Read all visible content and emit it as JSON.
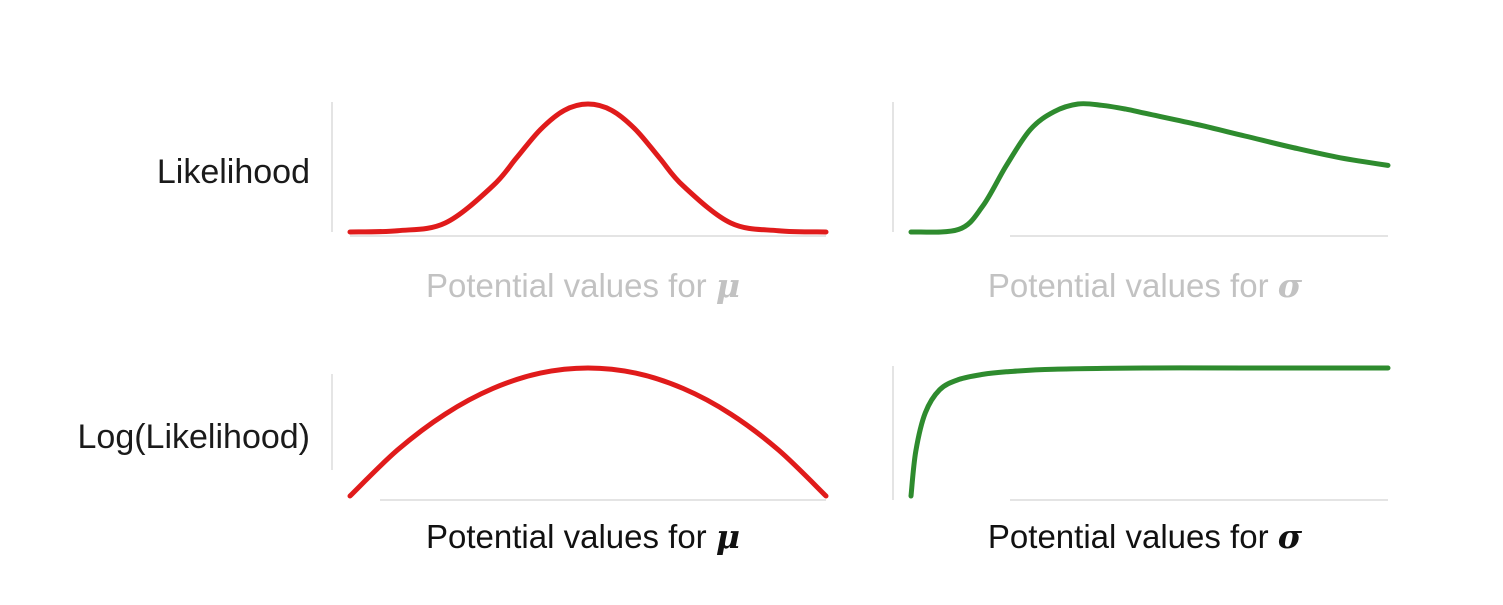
{
  "chart_data": [
    {
      "type": "line",
      "row_label": "Likelihood",
      "xlabel_text": "Potential values for ",
      "xlabel_symbol": "μ",
      "xlabel_faded": true,
      "xlim": [
        0,
        1
      ],
      "ylim": [
        0,
        1
      ],
      "color": "#e01b1b",
      "series": [
        {
          "x": [
            0,
            0.1,
            0.2,
            0.3,
            0.35,
            0.4,
            0.45,
            0.5,
            0.55,
            0.6,
            0.65,
            0.7,
            0.8,
            0.9,
            1.0
          ],
          "y": [
            0.0,
            0.01,
            0.07,
            0.36,
            0.58,
            0.8,
            0.95,
            1.0,
            0.95,
            0.8,
            0.58,
            0.36,
            0.07,
            0.01,
            0.0
          ]
        }
      ]
    },
    {
      "type": "line",
      "row_label": "",
      "xlabel_text": "Potential values for ",
      "xlabel_symbol": "σ",
      "xlabel_faded": true,
      "xlim": [
        0,
        1
      ],
      "ylim": [
        0,
        1
      ],
      "color": "#2e8b2e",
      "series": [
        {
          "x": [
            0,
            0.1,
            0.15,
            0.2,
            0.25,
            0.3,
            0.35,
            0.4,
            0.45,
            0.5,
            0.6,
            0.7,
            0.8,
            0.9,
            1.0
          ],
          "y": [
            0.0,
            0.02,
            0.2,
            0.52,
            0.8,
            0.94,
            1.0,
            0.99,
            0.96,
            0.92,
            0.84,
            0.75,
            0.66,
            0.58,
            0.52
          ]
        }
      ]
    },
    {
      "type": "line",
      "row_label": "Log(Likelihood)",
      "xlabel_text": "Potential values for ",
      "xlabel_symbol": "μ",
      "xlabel_faded": false,
      "xlim": [
        0,
        1
      ],
      "ylim": [
        0,
        1
      ],
      "color": "#e01b1b",
      "series": [
        {
          "x": [
            0,
            0.1,
            0.2,
            0.3,
            0.4,
            0.5,
            0.6,
            0.7,
            0.8,
            0.9,
            1.0
          ],
          "y": [
            0.0,
            0.36,
            0.64,
            0.84,
            0.96,
            1.0,
            0.96,
            0.84,
            0.64,
            0.36,
            0.0
          ]
        }
      ]
    },
    {
      "type": "line",
      "row_label": "",
      "xlabel_text": "Potential values for ",
      "xlabel_symbol": "σ",
      "xlabel_faded": false,
      "xlim": [
        0,
        1
      ],
      "ylim": [
        0,
        1
      ],
      "color": "#2e8b2e",
      "series": [
        {
          "x": [
            0,
            0.01,
            0.03,
            0.06,
            0.1,
            0.15,
            0.2,
            0.3,
            0.5,
            0.7,
            1.0
          ],
          "y": [
            0.0,
            0.35,
            0.65,
            0.83,
            0.91,
            0.95,
            0.97,
            0.99,
            1.0,
            1.0,
            1.0
          ]
        }
      ]
    }
  ]
}
